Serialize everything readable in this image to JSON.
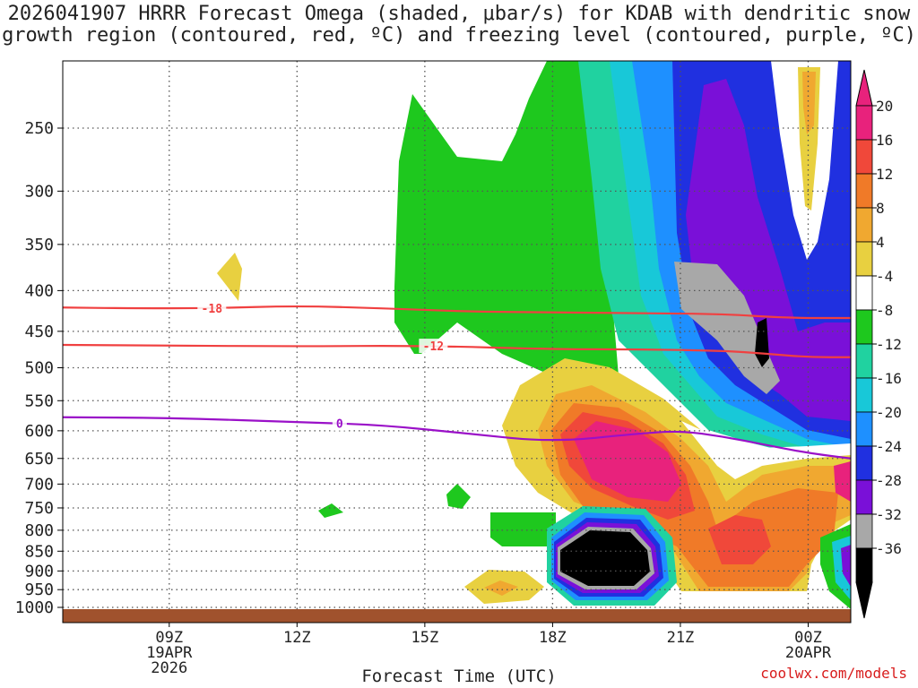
{
  "chart_data": {
    "type": "heatmap",
    "title_line1": "2026041907 HRRR Forecast Omega (shaded, μbar/s) for KDAB with dendritic snow",
    "title_line2": "growth region (contoured, red, ºC) and freezing level (contoured, purple, ºC)",
    "xlabel": "Forecast Time (UTC)",
    "ylabel": "",
    "credit": "coolwx.com/models",
    "x_range_hours": [
      6.5,
      25.0
    ],
    "x_ticks": [
      {
        "hour": 9,
        "lines": [
          "09Z",
          "19APR",
          "2026"
        ]
      },
      {
        "hour": 12,
        "lines": [
          "12Z"
        ]
      },
      {
        "hour": 15,
        "lines": [
          "15Z"
        ]
      },
      {
        "hour": 18,
        "lines": [
          "18Z"
        ]
      },
      {
        "hour": 21,
        "lines": [
          "21Z"
        ]
      },
      {
        "hour": 24,
        "lines": [
          "00Z",
          "20APR"
        ]
      }
    ],
    "y_ticks_hpa": [
      250,
      300,
      350,
      400,
      450,
      500,
      550,
      600,
      650,
      700,
      750,
      800,
      850,
      900,
      950,
      1000
    ],
    "y_range_hpa": [
      200,
      1010
    ],
    "colorbar": {
      "labels": [
        "20",
        "16",
        "12",
        "8",
        "4",
        "-4",
        "-8",
        "-12",
        "-16",
        "-20",
        "-24",
        "-28",
        "-32",
        "-36"
      ],
      "colors": [
        "#e8227c",
        "#f0483a",
        "#f07a28",
        "#f0a830",
        "#e8d040",
        "#ffffff",
        "#1ec81e",
        "#20d2a0",
        "#18c8d8",
        "#1e90ff",
        "#2030e0",
        "#7a10d8",
        "#a8a8a8",
        "#000000"
      ],
      "top_arrow_color": "#e8227c",
      "bottom_arrow_color": "#000000"
    },
    "contours": [
      {
        "label": "-18",
        "color": "#f04040",
        "label_hour": 10.0,
        "points": [
          [
            6.5,
            420
          ],
          [
            8,
            421
          ],
          [
            10,
            421
          ],
          [
            12,
            418
          ],
          [
            14,
            421
          ],
          [
            16,
            425
          ],
          [
            18,
            426
          ],
          [
            20,
            427
          ],
          [
            22,
            428
          ],
          [
            23.5,
            433
          ],
          [
            25,
            433
          ]
        ]
      },
      {
        "label": "-12",
        "color": "#f04040",
        "label_hour": 15.2,
        "points": [
          [
            6.5,
            468
          ],
          [
            9,
            469
          ],
          [
            12,
            470
          ],
          [
            15,
            469
          ],
          [
            18,
            474
          ],
          [
            20,
            474
          ],
          [
            22,
            476
          ],
          [
            23,
            480
          ],
          [
            24,
            485
          ],
          [
            25,
            485
          ]
        ]
      },
      {
        "label": "0",
        "color": "#9a10c8",
        "label_hour": 13.0,
        "points": [
          [
            6.5,
            577
          ],
          [
            9,
            578
          ],
          [
            12,
            585
          ],
          [
            14,
            590
          ],
          [
            16,
            605
          ],
          [
            18,
            620
          ],
          [
            20,
            605
          ],
          [
            21,
            600
          ],
          [
            22,
            610
          ],
          [
            23,
            625
          ],
          [
            24,
            640
          ],
          [
            25,
            650
          ]
        ]
      }
    ],
    "ground_color": "#a0522d"
  }
}
